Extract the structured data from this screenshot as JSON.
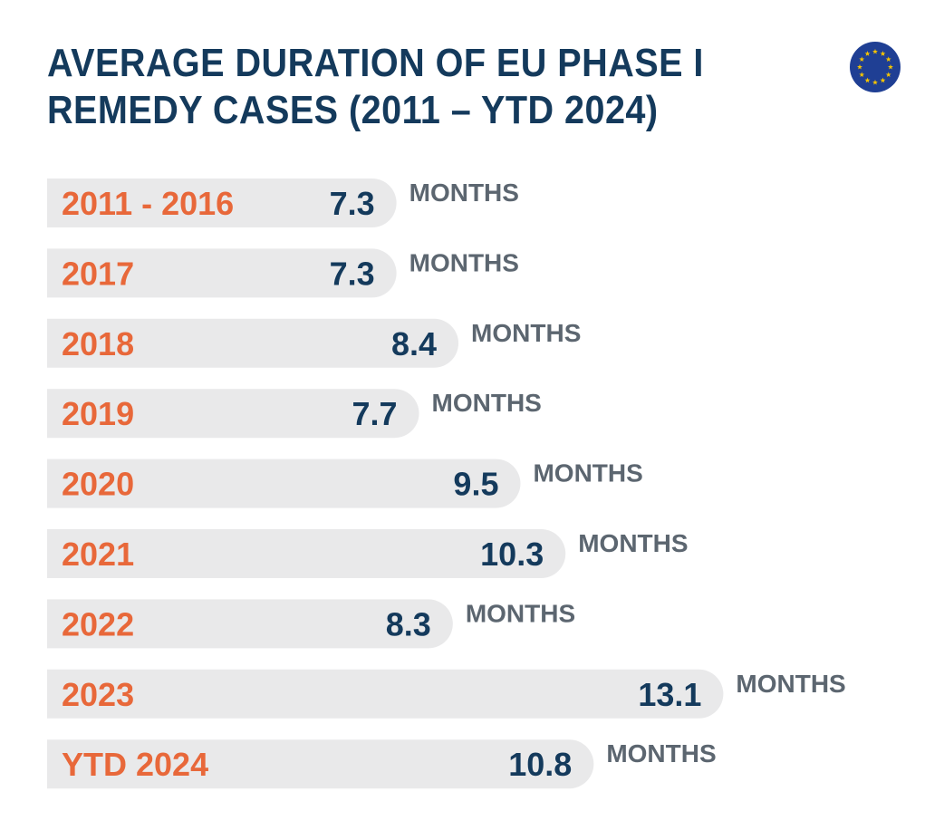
{
  "title_line1": "AVERAGE DURATION OF EU PHASE I",
  "title_line2": "REMEDY CASES (2011 – YTD 2024)",
  "flag_icon": "eu-flag-icon",
  "colors": {
    "title": "#143a5c",
    "category": "#e8683a",
    "value": "#143a5c",
    "unit": "#5c6670",
    "bar": "#e9e9ea",
    "flag_blue": "#1f3f94",
    "flag_star": "#f5c400"
  },
  "chart_data": {
    "type": "bar",
    "orientation": "horizontal",
    "title": "AVERAGE DURATION OF EU PHASE I REMEDY CASES (2011 – YTD 2024)",
    "categories": [
      "2011 - 2016",
      "2017",
      "2018",
      "2019",
      "2020",
      "2021",
      "2022",
      "2023",
      "YTD 2024"
    ],
    "values": [
      7.3,
      7.3,
      8.4,
      7.7,
      9.5,
      10.3,
      8.3,
      13.1,
      10.8
    ],
    "value_labels": [
      "7.3",
      "7.3",
      "8.4",
      "7.7",
      "9.5",
      "10.3",
      "8.3",
      "13.1",
      "10.8"
    ],
    "unit_label": "MONTHS",
    "grid": false,
    "legend": "none"
  }
}
